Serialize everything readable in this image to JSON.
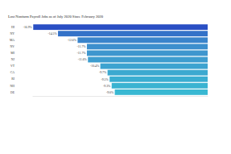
{
  "chart_data": {
    "type": "bar",
    "orientation": "horizontal",
    "title": "Lost Nonfarm Payroll Jobs as of July 2020 Since February 2020",
    "categories": [
      "HI",
      "NY",
      "MA",
      "NV",
      "MI",
      "NJ",
      "VT",
      "CA",
      "RI",
      "NH",
      "DE"
    ],
    "values": [
      -16.9,
      -14.5,
      -12.6,
      -11.7,
      -11.7,
      -11.6,
      -10.4,
      -9.7,
      -9.5,
      -9.3,
      -9.0
    ],
    "value_labels": [
      "-16.9%",
      "-14.5%",
      "-12.6%",
      "-11.7%",
      "-11.7%",
      "-11.6%",
      "-10.4%",
      "-9.7%",
      "-9.5%",
      "-9.3%",
      "-9.0%"
    ],
    "colors": [
      "#2a4fc4",
      "#3472c8",
      "#3a84cb",
      "#3d8fcd",
      "#3e96ce",
      "#3e9dcf",
      "#3da3d0",
      "#3ca9d0",
      "#3baed1",
      "#3ab3d1",
      "#39b8d2"
    ],
    "xlim": [
      -17,
      0
    ],
    "xticks": [],
    "data_labels": true,
    "tick_labels": "y",
    "grid": false
  }
}
